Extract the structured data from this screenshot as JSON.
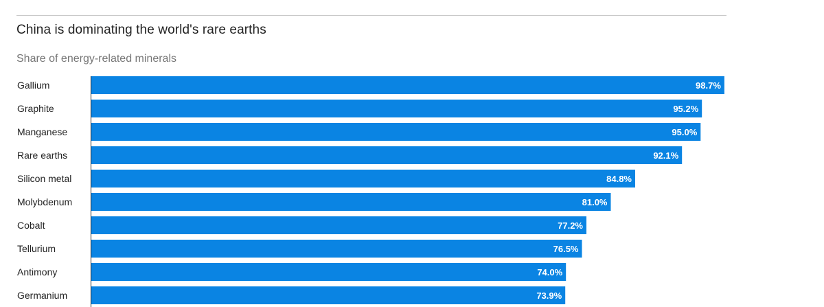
{
  "title": "China is dominating the world's rare earths",
  "subtitle": "Share of energy-related minerals",
  "colors": {
    "bar": "#0a84e3",
    "axis": "#222222",
    "value_text": "#ffffff"
  },
  "chart_data": {
    "type": "bar",
    "orientation": "horizontal",
    "title": "China is dominating the world's rare earths",
    "subtitle": "Share of energy-related minerals",
    "categories": [
      "Gallium",
      "Graphite",
      "Manganese",
      "Rare earths",
      "Silicon metal",
      "Molybdenum",
      "Cobalt",
      "Tellurium",
      "Antimony",
      "Germanium"
    ],
    "values": [
      98.7,
      95.2,
      95.0,
      92.1,
      84.8,
      81.0,
      77.2,
      76.5,
      74.0,
      73.9
    ],
    "data_labels": [
      "98.7%",
      "95.2%",
      "95.0%",
      "92.1%",
      "84.8%",
      "81.0%",
      "77.2%",
      "76.5%",
      "74.0%",
      "73.9%"
    ],
    "unit": "%",
    "xlim": [
      0,
      100
    ],
    "grid": false,
    "legend": "none"
  }
}
